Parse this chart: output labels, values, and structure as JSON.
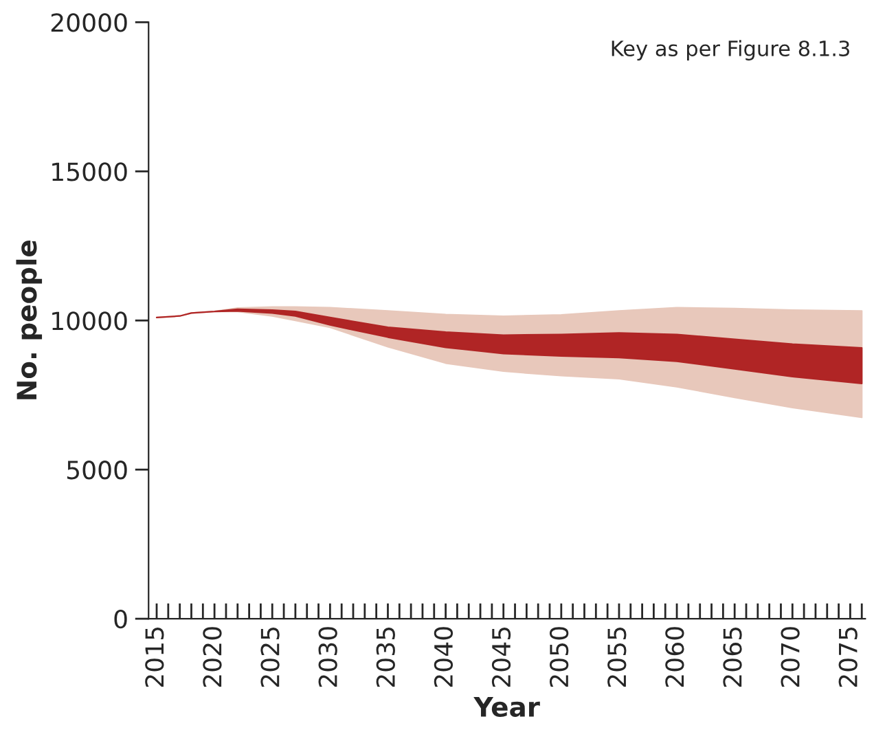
{
  "chart_data": {
    "type": "area",
    "xlabel": "Year",
    "ylabel": "No. people",
    "annotations": [
      "Key as per Figure 8.1.3"
    ],
    "x": [
      2015,
      2017,
      2018,
      2020,
      2022,
      2025,
      2027,
      2030,
      2035,
      2040,
      2045,
      2050,
      2055,
      2060,
      2065,
      2070,
      2076
    ],
    "series": [
      {
        "color": "#e8c8bb",
        "values": [
          null,
          null,
          null,
          null,
          null,
          null,
          null,
          null,
          null,
          null,
          null,
          null,
          null,
          null,
          null,
          null,
          null
        ],
        "lower": [
          10100,
          10150,
          10250,
          10300,
          10300,
          10150,
          10000,
          9770,
          9120,
          8570,
          8300,
          8150,
          8050,
          7780,
          7420,
          7080,
          6750
        ],
        "upper": [
          10100,
          10150,
          10250,
          10300,
          10420,
          10450,
          10450,
          10430,
          10320,
          10200,
          10140,
          10190,
          10320,
          10430,
          10400,
          10350,
          10320
        ]
      },
      {
        "color": "#b02525",
        "values": [
          null,
          null,
          null,
          null,
          null,
          null,
          null,
          null,
          null,
          null,
          null,
          null,
          null,
          null,
          null,
          null,
          null
        ],
        "lower": [
          10100,
          10150,
          10250,
          10300,
          10320,
          10250,
          10150,
          9850,
          9440,
          9100,
          8890,
          8810,
          8760,
          8630,
          8380,
          8120,
          7890
        ],
        "upper": [
          10100,
          10150,
          10250,
          10300,
          10380,
          10350,
          10300,
          10100,
          9770,
          9610,
          9510,
          9530,
          9580,
          9530,
          9370,
          9210,
          9080
        ]
      }
    ],
    "xlim": [
      2014.3,
      2076.3
    ],
    "ylim": [
      0,
      20000
    ],
    "yticks": [
      0,
      5000,
      10000,
      15000,
      20000
    ],
    "xticks": [
      2015,
      {
        "value": 2016,
        "label": null
      },
      {
        "value": 2017,
        "label": null
      },
      {
        "value": 2018,
        "label": null
      },
      {
        "value": 2019,
        "label": null
      },
      2020,
      {
        "value": 2021,
        "label": null
      },
      {
        "value": 2022,
        "label": null
      },
      {
        "value": 2023,
        "label": null
      },
      {
        "value": 2024,
        "label": null
      },
      2025,
      {
        "value": 2026,
        "label": null
      },
      {
        "value": 2027,
        "label": null
      },
      {
        "value": 2028,
        "label": null
      },
      {
        "value": 2029,
        "label": null
      },
      2030,
      {
        "value": 2031,
        "label": null
      },
      {
        "value": 2032,
        "label": null
      },
      {
        "value": 2033,
        "label": null
      },
      {
        "value": 2034,
        "label": null
      },
      2035,
      {
        "value": 2036,
        "label": null
      },
      {
        "value": 2037,
        "label": null
      },
      {
        "value": 2038,
        "label": null
      },
      {
        "value": 2039,
        "label": null
      },
      2040,
      {
        "value": 2041,
        "label": null
      },
      {
        "value": 2042,
        "label": null
      },
      {
        "value": 2043,
        "label": null
      },
      {
        "value": 2044,
        "label": null
      },
      2045,
      {
        "value": 2046,
        "label": null
      },
      {
        "value": 2047,
        "label": null
      },
      {
        "value": 2048,
        "label": null
      },
      {
        "value": 2049,
        "label": null
      },
      2050,
      {
        "value": 2051,
        "label": null
      },
      {
        "value": 2052,
        "label": null
      },
      {
        "value": 2053,
        "label": null
      },
      {
        "value": 2054,
        "label": null
      },
      2055,
      {
        "value": 2056,
        "label": null
      },
      {
        "value": 2057,
        "label": null
      },
      {
        "value": 2058,
        "label": null
      },
      {
        "value": 2059,
        "label": null
      },
      2060,
      {
        "value": 2061,
        "label": null
      },
      {
        "value": 2062,
        "label": null
      },
      {
        "value": 2063,
        "label": null
      },
      {
        "value": 2064,
        "label": null
      },
      2065,
      {
        "value": 2066,
        "label": null
      },
      {
        "value": 2067,
        "label": null
      },
      {
        "value": 2068,
        "label": null
      },
      {
        "value": 2069,
        "label": null
      },
      2070,
      {
        "value": 2071,
        "label": null
      },
      {
        "value": 2072,
        "label": null
      },
      {
        "value": 2073,
        "label": null
      },
      {
        "value": 2074,
        "label": null
      },
      2075,
      {
        "value": 2076,
        "label": null
      }
    ],
    "grid": false,
    "legend": false
  }
}
